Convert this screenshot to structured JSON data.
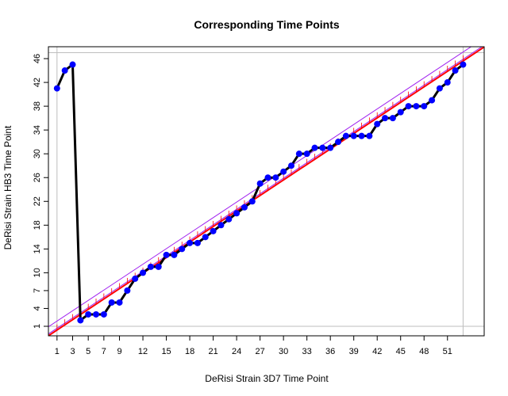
{
  "chart_data": {
    "type": "line",
    "title": "Corresponding Time Points",
    "xlabel": "DeRisi Strain 3D7 Time Point",
    "ylabel": "DeRisi Strain HB3 Time Point",
    "xlim": [
      -0.1,
      55.7
    ],
    "ylim": [
      -0.6,
      48.0
    ],
    "x_ticks": [
      1,
      3,
      5,
      7,
      9,
      12,
      15,
      18,
      21,
      24,
      27,
      30,
      33,
      36,
      39,
      42,
      45,
      48,
      51
    ],
    "y_ticks": [
      1,
      4,
      7,
      10,
      14,
      18,
      22,
      26,
      30,
      34,
      38,
      42,
      46
    ],
    "grid": "reference lines at x=1, x=53, y=1, y=47",
    "series": [
      {
        "style": "black line with blue points",
        "x": [
          1,
          2,
          3,
          4,
          5,
          6,
          7,
          8,
          9,
          10,
          11,
          12,
          13,
          14,
          15,
          16,
          17,
          18,
          19,
          20,
          21,
          22,
          23,
          24,
          25,
          26,
          27,
          28,
          29,
          30,
          31,
          32,
          33,
          34,
          35,
          36,
          37,
          38,
          39,
          40,
          41,
          42,
          43,
          44,
          45,
          46,
          47,
          48,
          49,
          50,
          51,
          52,
          53
        ],
        "y": [
          41,
          44,
          45,
          2,
          3,
          3,
          3,
          5,
          5,
          7,
          9,
          10,
          11,
          11,
          13,
          13,
          14,
          15,
          15,
          16,
          17,
          18,
          19,
          20,
          21,
          22,
          25,
          26,
          26,
          27,
          28,
          30,
          30,
          31,
          31,
          31,
          32,
          33,
          33,
          33,
          33,
          35,
          36,
          36,
          37,
          38,
          38,
          38,
          39,
          41,
          42,
          44,
          45
        ]
      }
    ],
    "reference_lines": [
      {
        "style": "red line",
        "color": "#ff0000",
        "slope": 0.87,
        "intercept": -0.5
      },
      {
        "style": "purple band",
        "color": "#a020f0",
        "slope": 0.87,
        "intercept": 0.4
      }
    ],
    "colors": {
      "points": "#0000ff",
      "line": "#000000",
      "fit": "#ff0000",
      "band": "#a020f0",
      "frame": "#000000",
      "grid": "#bebebe"
    }
  }
}
